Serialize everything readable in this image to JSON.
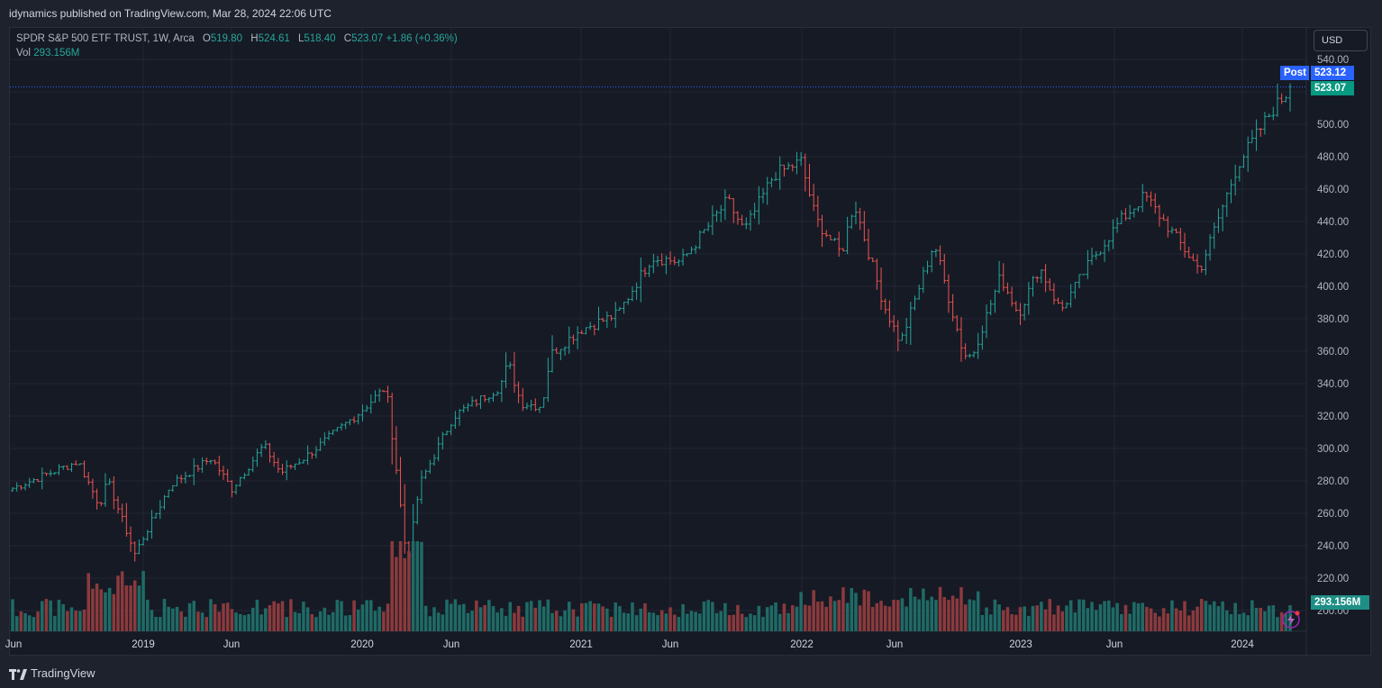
{
  "header": {
    "publish_line": "idynamics published on TradingView.com, Mar 28, 2024 22:06 UTC"
  },
  "legend": {
    "symbol": "SPDR S&P 500 ETF TRUST, 1W, Arca",
    "o_label": "O",
    "o_value": "519.80",
    "h_label": "H",
    "h_value": "524.61",
    "l_label": "L",
    "l_value": "518.40",
    "c_label": "C",
    "c_value": "523.07",
    "change": "+1.86 (+0.36%)",
    "vol_label": "Vol",
    "vol_value": "293.156M"
  },
  "price_axis": {
    "currency": "USD"
  },
  "tags": {
    "post_label": "Post",
    "post_price": "523.12",
    "last_price": "523.07",
    "volume": "293.156M"
  },
  "footer": {
    "brand": "TradingView"
  },
  "colors": {
    "up": "#26a69a",
    "down": "#ef5350",
    "up_vol": "#1f6b66",
    "down_vol": "#8b3a3d",
    "post_tag": "#2962ff",
    "last_tag": "#089981",
    "grid": "#232733",
    "background": "#161a25"
  },
  "chart_data": {
    "type": "ohlc",
    "title": "SPDR S&P 500 ETF TRUST, 1W, Arca",
    "interval": "1W",
    "ylim": [
      190,
      545
    ],
    "y_ticks": [
      "540.00",
      "520.00",
      "500.00",
      "480.00",
      "460.00",
      "440.00",
      "420.00",
      "400.00",
      "380.00",
      "360.00",
      "340.00",
      "320.00",
      "300.00",
      "280.00",
      "260.00",
      "240.00",
      "220.00",
      "200.00"
    ],
    "x_ticks": [
      "Jun",
      "2019",
      "Jun",
      "2020",
      "Jun",
      "2021",
      "Jun",
      "2022",
      "Jun",
      "2023",
      "Jun",
      "2024"
    ],
    "price_anchors": [
      {
        "date": "2018-06-01",
        "close": 275
      },
      {
        "date": "2018-09-21",
        "close": 292
      },
      {
        "date": "2018-10-26",
        "close": 265
      },
      {
        "date": "2018-11-09",
        "close": 280
      },
      {
        "date": "2018-12-24",
        "close": 235
      },
      {
        "date": "2019-02-22",
        "close": 278
      },
      {
        "date": "2019-04-30",
        "close": 294
      },
      {
        "date": "2019-06-03",
        "close": 275
      },
      {
        "date": "2019-07-26",
        "close": 302
      },
      {
        "date": "2019-08-23",
        "close": 285
      },
      {
        "date": "2019-10-04",
        "close": 295
      },
      {
        "date": "2019-12-31",
        "close": 322
      },
      {
        "date": "2020-02-14",
        "close": 338
      },
      {
        "date": "2020-02-28",
        "close": 297
      },
      {
        "date": "2020-03-20",
        "close": 229
      },
      {
        "date": "2020-04-10",
        "close": 278
      },
      {
        "date": "2020-06-05",
        "close": 320
      },
      {
        "date": "2020-08-21",
        "close": 338
      },
      {
        "date": "2020-09-04",
        "close": 353
      },
      {
        "date": "2020-09-25",
        "close": 328
      },
      {
        "date": "2020-10-30",
        "close": 326
      },
      {
        "date": "2020-11-13",
        "close": 358
      },
      {
        "date": "2020-12-31",
        "close": 373
      },
      {
        "date": "2021-03-05",
        "close": 383
      },
      {
        "date": "2021-04-30",
        "close": 418
      },
      {
        "date": "2021-06-18",
        "close": 415
      },
      {
        "date": "2021-09-03",
        "close": 453
      },
      {
        "date": "2021-10-01",
        "close": 434
      },
      {
        "date": "2021-11-19",
        "close": 469
      },
      {
        "date": "2022-01-03",
        "close": 477
      },
      {
        "date": "2022-01-28",
        "close": 441
      },
      {
        "date": "2022-03-11",
        "close": 420
      },
      {
        "date": "2022-04-01",
        "close": 452
      },
      {
        "date": "2022-05-20",
        "close": 389
      },
      {
        "date": "2022-06-17",
        "close": 365
      },
      {
        "date": "2022-08-12",
        "close": 427
      },
      {
        "date": "2022-09-30",
        "close": 358
      },
      {
        "date": "2022-10-14",
        "close": 357
      },
      {
        "date": "2022-11-30",
        "close": 406
      },
      {
        "date": "2022-12-30",
        "close": 383
      },
      {
        "date": "2023-02-03",
        "close": 412
      },
      {
        "date": "2023-03-10",
        "close": 385
      },
      {
        "date": "2023-04-28",
        "close": 415
      },
      {
        "date": "2023-06-16",
        "close": 440
      },
      {
        "date": "2023-07-28",
        "close": 456
      },
      {
        "date": "2023-10-27",
        "close": 410
      },
      {
        "date": "2023-12-29",
        "close": 475
      },
      {
        "date": "2024-02-23",
        "close": 508
      },
      {
        "date": "2024-03-28",
        "close": 523.07
      }
    ],
    "volume_ticks_shown": [
      "293.156M"
    ]
  }
}
